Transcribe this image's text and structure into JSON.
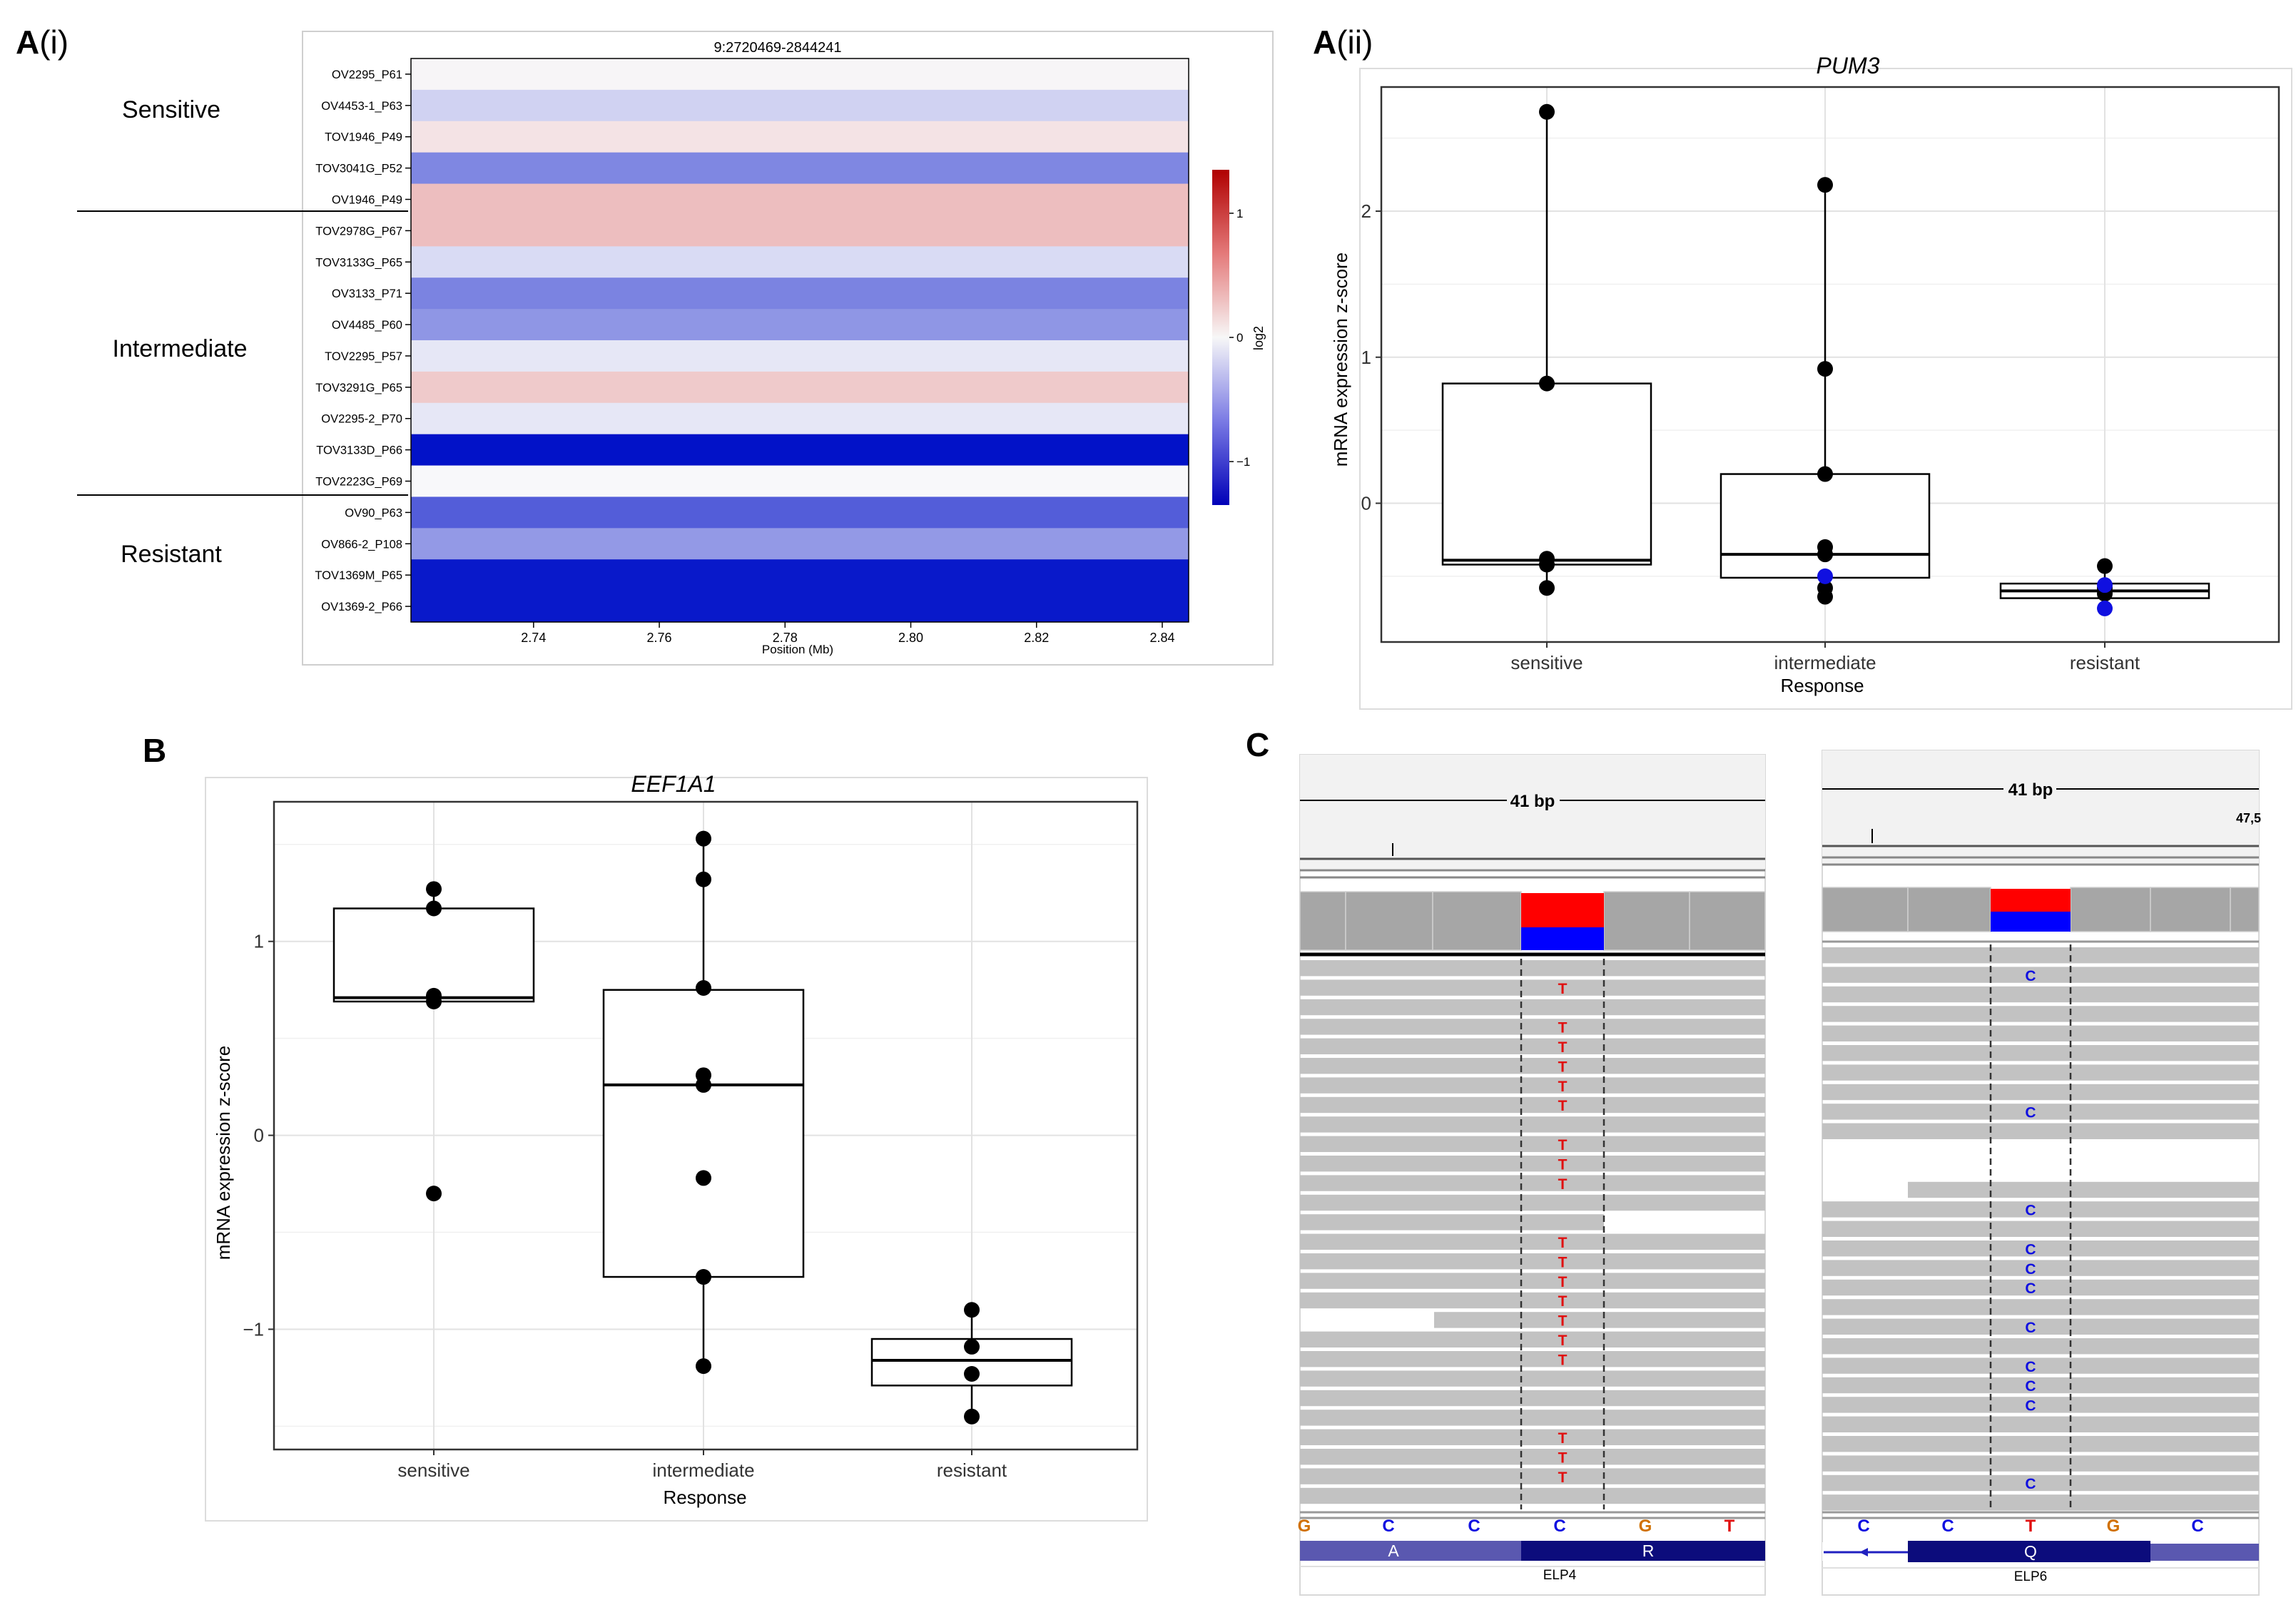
{
  "panels": {
    "a_i": {
      "letter": "A",
      "sub": "(i)"
    },
    "a_ii": {
      "letter": "A",
      "sub": "(ii)"
    },
    "b": {
      "letter": "B"
    },
    "c": {
      "letter": "C"
    }
  },
  "chart_data": [
    {
      "id": "heatmap",
      "type": "heatmap",
      "title": "9:2720469-2844241",
      "xlabel": "Position (Mb)",
      "x_ticks": [
        "2.74",
        "2.76",
        "2.78",
        "2.80",
        "2.82",
        "2.84"
      ],
      "x_range": [
        2.7205,
        2.8442
      ],
      "colorbar": {
        "label": "log2",
        "ticks": [
          "1",
          "0",
          "−1"
        ],
        "range": [
          -1.35,
          1.35
        ]
      },
      "rows": [
        "OV2295_P61",
        "OV4453-1_P63",
        "TOV1946_P49",
        "TOV3041G_P52",
        "OV1946_P49",
        "TOV2978G_P67",
        "TOV3133G_P65",
        "OV3133_P71",
        "OV4485_P60",
        "TOV2295_P57",
        "TOV3291G_P65",
        "OV2295-2_P70",
        "TOV3133D_P66",
        "TOV2223G_P69",
        "OV90_P63",
        "OV866-2_P108",
        "TOV1369M_P65",
        "OV1369-2_P66"
      ],
      "values": [
        0.02,
        -0.22,
        0.12,
        -0.66,
        0.34,
        0.34,
        -0.17,
        -0.68,
        -0.57,
        -0.1,
        0.27,
        -0.1,
        -1.34,
        0.0,
        -0.9,
        -0.55,
        -1.3,
        -1.3
      ],
      "groups": [
        "Sensitive",
        "Intermediate",
        "Resistant"
      ]
    },
    {
      "id": "pum3",
      "type": "box",
      "title": "PUM3",
      "xlabel": "Response",
      "ylabel": "mRNA expression z-score",
      "categories": [
        "sensitive",
        "intermediate",
        "resistant"
      ],
      "y_ticks": [
        "2",
        "1",
        "0"
      ],
      "ylim": [
        -0.95,
        2.85
      ],
      "boxes": [
        {
          "q1": -0.42,
          "median": -0.39,
          "q3": 0.82,
          "lo": -0.58,
          "hi": 2.68
        },
        {
          "q1": -0.51,
          "median": -0.35,
          "q3": 0.2,
          "lo": -0.64,
          "hi": 2.18
        },
        {
          "q1": -0.65,
          "median": -0.6,
          "q3": -0.55,
          "lo": -0.72,
          "hi": -0.43
        }
      ],
      "points": [
        {
          "cat": 0,
          "values": [
            2.68,
            0.82,
            -0.38,
            -0.42,
            -0.58
          ]
        },
        {
          "cat": 1,
          "values": [
            2.18,
            0.92,
            0.2,
            -0.3,
            -0.35,
            -0.58,
            -0.64
          ]
        },
        {
          "cat": 2,
          "values": [
            -0.43,
            -0.58,
            -0.62
          ]
        }
      ],
      "highlight_points": [
        {
          "cat": 1,
          "values": [
            -0.5
          ]
        },
        {
          "cat": 2,
          "values": [
            -0.56,
            -0.72
          ]
        }
      ]
    },
    {
      "id": "eef1a1",
      "type": "box",
      "title": "EEF1A1",
      "xlabel": "Response",
      "ylabel": "mRNA expression z-score",
      "categories": [
        "sensitive",
        "intermediate",
        "resistant"
      ],
      "y_ticks": [
        "1",
        "0",
        "−1"
      ],
      "ylim": [
        -1.62,
        1.72
      ],
      "boxes": [
        {
          "q1": 0.69,
          "median": 0.71,
          "q3": 1.17,
          "lo": 0.69,
          "hi": 1.27
        },
        {
          "q1": -0.73,
          "median": 0.26,
          "q3": 0.75,
          "lo": -1.19,
          "hi": 1.53
        },
        {
          "q1": -1.29,
          "median": -1.16,
          "q3": -1.05,
          "lo": -1.45,
          "hi": -0.9
        }
      ],
      "points": [
        {
          "cat": 0,
          "values": [
            1.27,
            1.17,
            0.72,
            0.69,
            -0.3
          ]
        },
        {
          "cat": 1,
          "values": [
            1.53,
            1.32,
            0.76,
            0.31,
            0.26,
            -0.22,
            -0.73,
            -1.19
          ]
        },
        {
          "cat": 2,
          "values": [
            -0.9,
            -1.09,
            -1.23,
            -1.45
          ]
        }
      ]
    }
  ],
  "igv": {
    "left": {
      "ruler": "41 bp",
      "read_letter": "T",
      "row_marks": [
        1,
        3,
        4,
        5,
        6,
        7,
        9,
        10,
        11,
        14,
        15,
        16,
        17,
        18,
        19,
        20,
        24,
        25,
        26
      ],
      "sequence": [
        "G",
        "C",
        "C",
        "C",
        "G",
        "T"
      ],
      "aa_left": "A",
      "aa_right": "R",
      "gene": "ELP4"
    },
    "right": {
      "ruler": "41 bp",
      "coord": "47,5",
      "read_letter": "C",
      "row_marks": [
        1,
        8,
        13,
        15,
        16,
        17,
        19,
        21,
        22,
        23,
        27
      ],
      "sequence": [
        "C",
        "C",
        "T",
        "G",
        "C"
      ],
      "aa": "Q",
      "gene": "ELP6"
    }
  },
  "colors": {
    "heat_high": "#cc1010",
    "heat_low": "#0010c8",
    "read_gray": "#c2c2c2",
    "base_T": "#e01010",
    "base_C": "#1010e0",
    "base_G": "#d07000",
    "highlight_point": "#1010e0"
  }
}
